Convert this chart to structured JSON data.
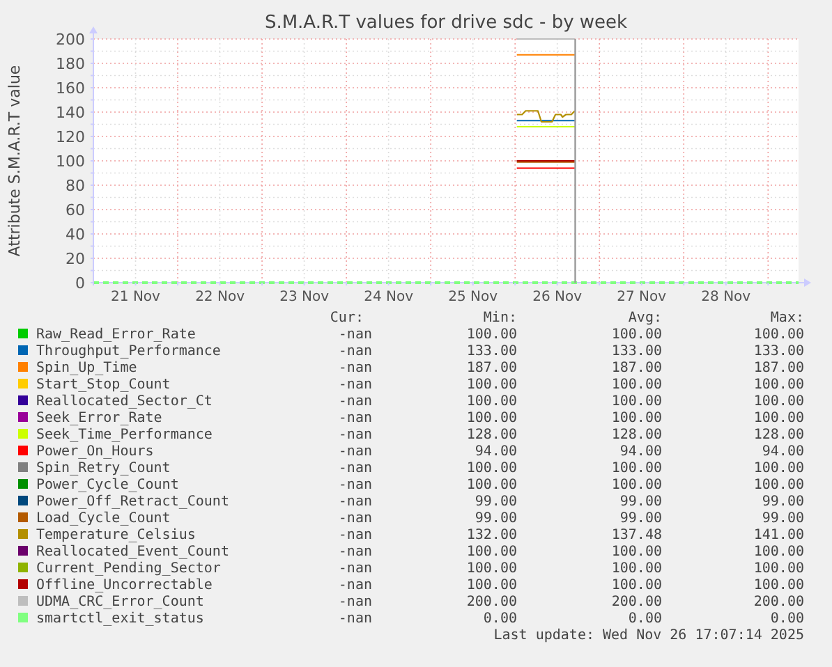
{
  "chart_data": {
    "type": "line",
    "title": "S.M.A.R.T values for drive sdc - by week",
    "ylabel": "Attribute S.M.A.R.T value",
    "xlim": [
      "2025-11-21T00:00",
      "2025-11-29T08:40"
    ],
    "xticks": [
      {
        "value": "2025-11-21T00:00",
        "label": null
      },
      {
        "value": "2025-11-21T12:00",
        "label": "21 Nov"
      },
      {
        "value": "2025-11-22T00:00",
        "label": null
      },
      {
        "value": "2025-11-22T12:00",
        "label": "22 Nov"
      },
      {
        "value": "2025-11-23T00:00",
        "label": null
      },
      {
        "value": "2025-11-23T12:00",
        "label": "23 Nov"
      },
      {
        "value": "2025-11-24T00:00",
        "label": null
      },
      {
        "value": "2025-11-24T12:00",
        "label": "24 Nov"
      },
      {
        "value": "2025-11-25T00:00",
        "label": null
      },
      {
        "value": "2025-11-25T12:00",
        "label": "25 Nov"
      },
      {
        "value": "2025-11-26T00:00",
        "label": null
      },
      {
        "value": "2025-11-26T12:00",
        "label": "26 Nov"
      },
      {
        "value": "2025-11-27T00:00",
        "label": null
      },
      {
        "value": "2025-11-27T12:00",
        "label": "27 Nov"
      },
      {
        "value": "2025-11-28T00:00",
        "label": null
      },
      {
        "value": "2025-11-28T12:00",
        "label": "28 Nov"
      },
      {
        "value": "2025-11-29T00:00",
        "label": null
      }
    ],
    "ylim": [
      0,
      200
    ],
    "yticks": [
      0,
      {
        "value": 10,
        "label": null
      },
      20,
      {
        "value": 30,
        "label": null
      },
      40,
      {
        "value": 50,
        "label": null
      },
      60,
      {
        "value": 70,
        "label": null
      },
      80,
      {
        "value": 90,
        "label": null
      },
      100,
      {
        "value": 110,
        "label": null
      },
      120,
      {
        "value": 130,
        "label": null
      },
      140,
      {
        "value": 150,
        "label": null
      },
      160,
      {
        "value": 170,
        "label": null
      },
      180,
      {
        "value": 190,
        "label": null
      },
      200
    ],
    "grid": true,
    "legend": "bottom",
    "marker": "none",
    "x": [
      "2025-11-26T00:30",
      "2025-11-26T17:00"
    ],
    "series": [
      {
        "name": "Raw_Read_Error_Rate",
        "color": "#00cc00",
        "values": [
          null,
          null
        ]
      },
      {
        "name": "Throughput_Performance",
        "color": "#0066b3",
        "values": [
          133,
          133
        ]
      },
      {
        "name": "Spin_Up_Time",
        "color": "#ff8000",
        "values": [
          187,
          187
        ]
      },
      {
        "name": "Start_Stop_Count",
        "color": "#ffcc00",
        "values": [
          null,
          null
        ]
      },
      {
        "name": "Reallocated_Sector_Ct",
        "color": "#330099",
        "values": [
          null,
          null
        ]
      },
      {
        "name": "Seek_Error_Rate",
        "color": "#990099",
        "values": [
          null,
          null
        ]
      },
      {
        "name": "Seek_Time_Performance",
        "color": "#ccff00",
        "values": [
          128,
          128
        ]
      },
      {
        "name": "Power_On_Hours",
        "color": "#ff0000",
        "values": [
          94,
          94
        ]
      },
      {
        "name": "Spin_Retry_Count",
        "color": "#808080",
        "values": [
          null,
          null
        ]
      },
      {
        "name": "Power_Cycle_Count",
        "color": "#008f00",
        "values": [
          null,
          null
        ]
      },
      {
        "name": "Power_Off_Retract_Count",
        "color": "#00487d",
        "values": [
          null,
          null
        ]
      },
      {
        "name": "Load_Cycle_Count",
        "color": "#b35a00",
        "values": [
          99,
          99
        ]
      },
      {
        "name": "Temperature_Celsius",
        "color": "#b38f00",
        "x": [
          "2025-11-26T00:30",
          "2025-11-26T02:00",
          "2025-11-26T03:00",
          "2025-11-26T06:30",
          "2025-11-26T07:30",
          "2025-11-26T10:30",
          "2025-11-26T11:30",
          "2025-11-26T13:00",
          "2025-11-26T13:30",
          "2025-11-26T14:30",
          "2025-11-26T16:00",
          "2025-11-26T17:00"
        ],
        "values": [
          138,
          138,
          141,
          141,
          132,
          132,
          138,
          138,
          136,
          138,
          138,
          141
        ]
      },
      {
        "name": "Reallocated_Event_Count",
        "color": "#6b006b",
        "values": [
          null,
          null
        ]
      },
      {
        "name": "Current_Pending_Sector",
        "color": "#8fb300",
        "values": [
          null,
          null
        ]
      },
      {
        "name": "Offline_Uncorrectable",
        "color": "#b30000",
        "values": [
          100,
          100
        ]
      },
      {
        "name": "UDMA_CRC_Error_Count",
        "color": "#bebebe",
        "values": [
          200,
          200
        ]
      },
      {
        "name": "smartctl_exit_status",
        "color": "#80ff80",
        "line_style": "dashed",
        "x": [
          "2025-11-21T00:00",
          "2025-11-29T08:40"
        ],
        "values": [
          0,
          0
        ]
      }
    ],
    "ref_lines": [
      {
        "axis": "x",
        "value": "2025-11-26T17:07",
        "color": "#999999"
      }
    ],
    "annotations": [
      "Cur:",
      "Min:",
      "Avg:",
      "Max:",
      "-nan",
      "100.00",
      "100.00",
      "100.00",
      "-nan",
      "133.00",
      "133.00",
      "133.00",
      "-nan",
      "187.00",
      "187.00",
      "187.00",
      "-nan",
      "100.00",
      "100.00",
      "100.00",
      "-nan",
      "100.00",
      "100.00",
      "100.00",
      "-nan",
      "100.00",
      "100.00",
      "100.00",
      "-nan",
      "128.00",
      "128.00",
      "128.00",
      "-nan",
      "94.00",
      "94.00",
      "94.00",
      "-nan",
      "100.00",
      "100.00",
      "100.00",
      "-nan",
      "100.00",
      "100.00",
      "100.00",
      "-nan",
      "99.00",
      "99.00",
      "99.00",
      "-nan",
      "99.00",
      "99.00",
      "99.00",
      "-nan",
      "132.00",
      "137.48",
      "141.00",
      "-nan",
      "100.00",
      "100.00",
      "100.00",
      "-nan",
      "100.00",
      "100.00",
      "100.00",
      "-nan",
      "100.00",
      "100.00",
      "100.00",
      "-nan",
      "200.00",
      "200.00",
      "200.00",
      "-nan",
      "0.00",
      "0.00",
      "0.00",
      "Last update: Wed Nov 26 17:07:14 2025"
    ]
  }
}
